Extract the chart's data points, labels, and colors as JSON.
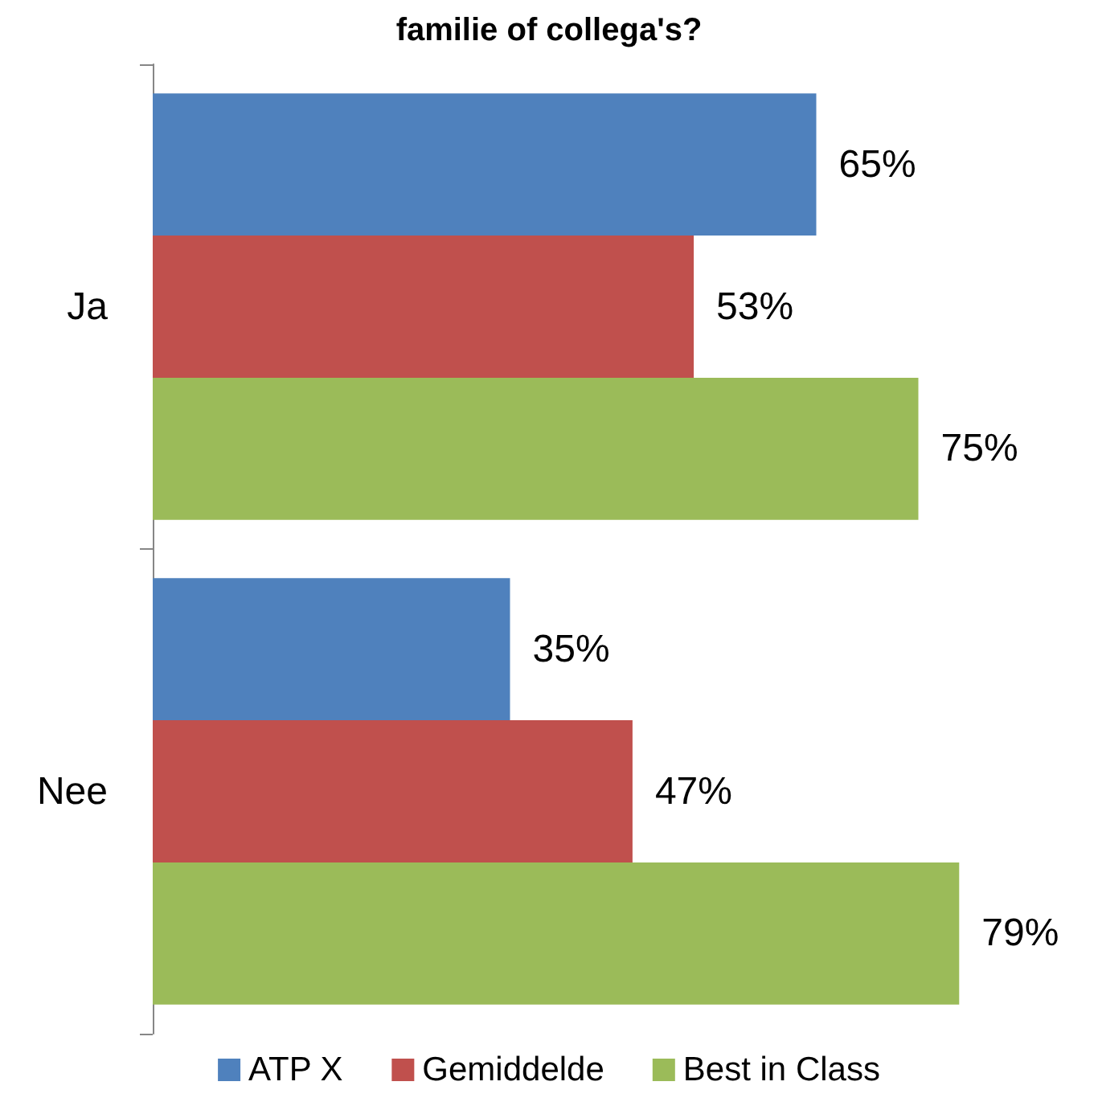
{
  "chart_data": {
    "type": "bar",
    "orientation": "horizontal",
    "title": "familie of collega's?",
    "categories": [
      "Ja",
      "Nee"
    ],
    "series": [
      {
        "name": "ATP X",
        "color": "#4f81bd",
        "values": [
          65,
          35
        ],
        "value_labels": [
          "65%",
          "35%"
        ]
      },
      {
        "name": "Gemiddelde",
        "color": "#c0504d",
        "values": [
          53,
          47
        ],
        "value_labels": [
          "53%",
          "47%"
        ]
      },
      {
        "name": "Best in Class",
        "color": "#9bbb59",
        "values": [
          75,
          79
        ],
        "value_labels": [
          "75%",
          "79%"
        ]
      }
    ],
    "legend": "bottom",
    "tick_labels": "y"
  }
}
